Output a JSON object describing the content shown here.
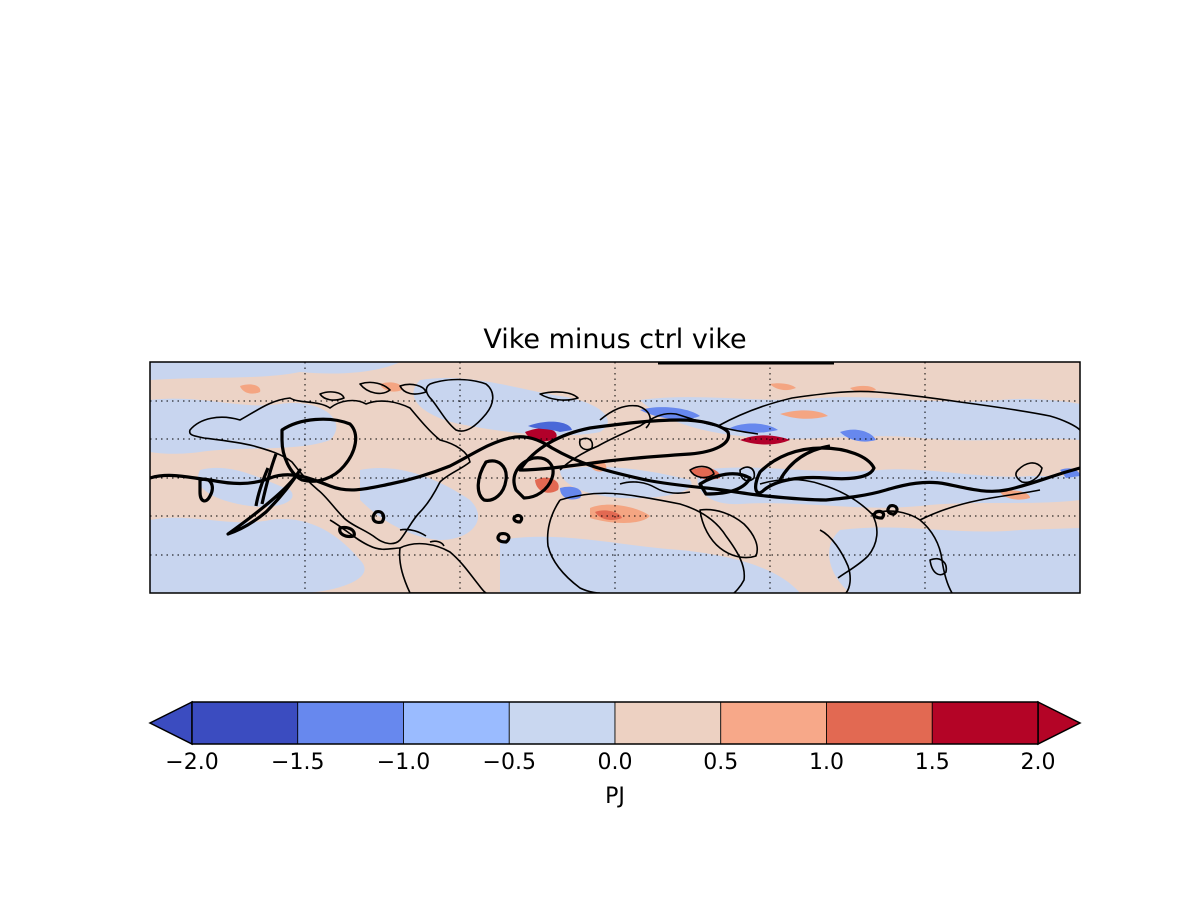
{
  "title": "Vike minus ctrl vike",
  "map": {
    "projection": "cylindrical",
    "extent": "Northern Hemisphere, 0°–360° longitude",
    "gridlines": "dotted",
    "features": [
      "coastlines",
      "thick black contour (control)"
    ],
    "field_colors": {
      "positive_light": "#ecd3c6",
      "negative_light": "#c8d5ef",
      "positive_mid": "#f4a582",
      "negative_mid": "#9bb8fd",
      "positive_strong": "#b2002a",
      "negative_strong": "#4a68d8"
    }
  },
  "colorbar": {
    "label": "PJ",
    "ticks": [
      "−2.0",
      "−1.5",
      "−1.0",
      "−0.5",
      "0.0",
      "0.5",
      "1.0",
      "1.5",
      "2.0"
    ],
    "levels": [
      -2.0,
      -1.5,
      -1.0,
      -0.5,
      0.0,
      0.5,
      1.0,
      1.5,
      2.0
    ],
    "colors": [
      "#3b4cc0",
      "#6788ee",
      "#9abbff",
      "#c9d7f0",
      "#edd1c2",
      "#f7a889",
      "#e26952",
      "#b40426"
    ],
    "extend_min_color": "#3b4cc0",
    "extend_max_color": "#b40426",
    "extend": "both",
    "orientation": "horizontal"
  }
}
